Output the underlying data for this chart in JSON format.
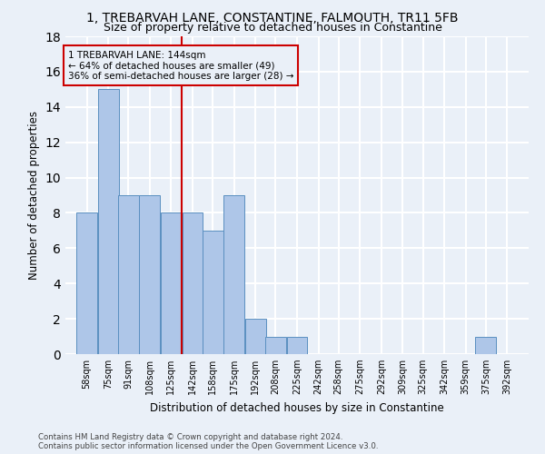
{
  "title1": "1, TREBARVAH LANE, CONSTANTINE, FALMOUTH, TR11 5FB",
  "title2": "Size of property relative to detached houses in Constantine",
  "xlabel": "Distribution of detached houses by size in Constantine",
  "ylabel": "Number of detached properties",
  "bin_labels": [
    "58sqm",
    "75sqm",
    "91sqm",
    "108sqm",
    "125sqm",
    "142sqm",
    "158sqm",
    "175sqm",
    "192sqm",
    "208sqm",
    "225sqm",
    "242sqm",
    "258sqm",
    "275sqm",
    "292sqm",
    "309sqm",
    "325sqm",
    "342sqm",
    "359sqm",
    "375sqm",
    "392sqm"
  ],
  "bin_edges": [
    58,
    75,
    91,
    108,
    125,
    142,
    158,
    175,
    192,
    208,
    225,
    242,
    258,
    275,
    292,
    309,
    325,
    342,
    359,
    375,
    392
  ],
  "bar_heights": [
    8,
    15,
    9,
    9,
    8,
    8,
    7,
    9,
    2,
    1,
    1,
    0,
    0,
    0,
    0,
    0,
    0,
    0,
    0,
    1,
    0
  ],
  "bar_color": "#aec6e8",
  "bar_edge_color": "#5a8fc0",
  "vline_x": 142,
  "vline_color": "#cc0000",
  "annotation_text": "1 TREBARVAH LANE: 144sqm\n← 64% of detached houses are smaller (49)\n36% of semi-detached houses are larger (28) →",
  "annotation_box_color": "#cc0000",
  "ylim": [
    0,
    18
  ],
  "yticks": [
    0,
    2,
    4,
    6,
    8,
    10,
    12,
    14,
    16,
    18
  ],
  "footer": "Contains HM Land Registry data © Crown copyright and database right 2024.\nContains public sector information licensed under the Open Government Licence v3.0.",
  "bg_color": "#eaf0f8",
  "grid_color": "#ffffff",
  "title_fontsize": 10,
  "subtitle_fontsize": 9,
  "axis_label_fontsize": 8.5
}
